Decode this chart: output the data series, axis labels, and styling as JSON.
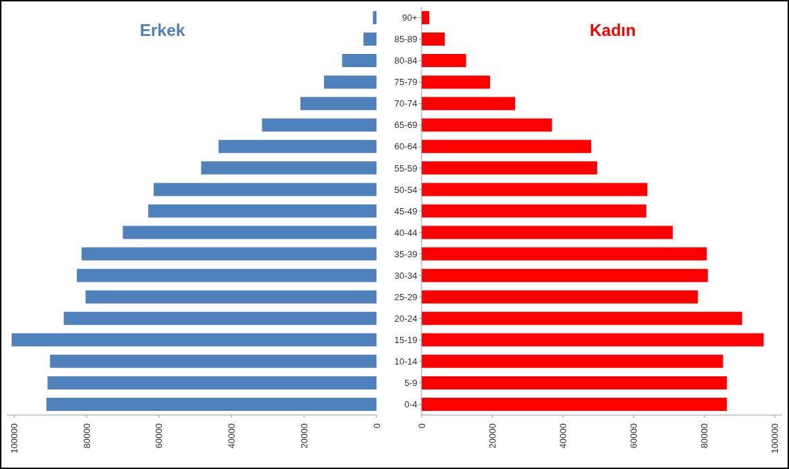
{
  "chart_data": [
    {
      "type": "bar",
      "orientation": "horizontal",
      "title": "Erkek",
      "tick_labels": "x",
      "categories": [
        "90+",
        "85-89",
        "80-84",
        "75-79",
        "70-74",
        "65-69",
        "60-64",
        "55-59",
        "50-54",
        "45-49",
        "40-44",
        "35-39",
        "30-34",
        "25-29",
        "20-24",
        "15-19",
        "10-14",
        "5-9",
        "0-4"
      ],
      "series": [
        {
          "color": "#4f81bd",
          "values": [
            1000,
            3600,
            9500,
            14500,
            21000,
            31600,
            43600,
            48400,
            61500,
            63000,
            70000,
            81400,
            82700,
            80300,
            86300,
            100700,
            90100,
            90800,
            91100
          ]
        }
      ],
      "xlim": [
        102000,
        0
      ],
      "xticks": [
        100000,
        80000,
        60000,
        40000,
        20000,
        0
      ],
      "grid": false,
      "legend": false
    },
    {
      "type": "bar",
      "orientation": "horizontal",
      "title": "Kadın",
      "categories": [
        "90+",
        "85-89",
        "80-84",
        "75-79",
        "70-74",
        "65-69",
        "60-64",
        "55-59",
        "50-54",
        "45-49",
        "40-44",
        "35-39",
        "30-34",
        "25-29",
        "20-24",
        "15-19",
        "10-14",
        "5-9",
        "0-4"
      ],
      "series": [
        {
          "color": "#ff0000",
          "values": [
            2200,
            6600,
            12600,
            19400,
            26500,
            36900,
            48000,
            49700,
            63900,
            63600,
            71100,
            80700,
            81000,
            78200,
            90700,
            96800,
            85300,
            86400,
            86400
          ]
        }
      ],
      "xlim": [
        0,
        102000
      ],
      "xticks": [
        0,
        20000,
        40000,
        60000,
        80000,
        100000
      ],
      "grid": false,
      "legend": false
    }
  ]
}
